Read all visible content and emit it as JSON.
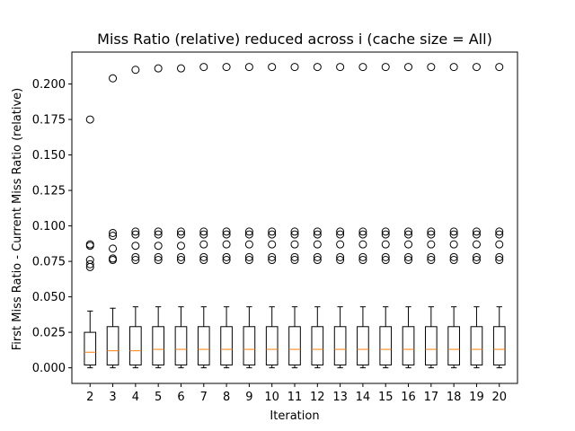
{
  "chart_data": {
    "type": "box",
    "title": "Miss Ratio (relative) reduced across i (cache size = All)",
    "xlabel": "Iteration",
    "ylabel": "First Miss Ratio - Current Miss Ratio (relative)",
    "ylim": [
      -0.011,
      0.2225
    ],
    "y_ticks": [
      0.0,
      0.025,
      0.05,
      0.075,
      0.1,
      0.125,
      0.15,
      0.175,
      0.2
    ],
    "y_tick_labels": [
      "0.000",
      "0.025",
      "0.050",
      "0.075",
      "0.100",
      "0.125",
      "0.150",
      "0.175",
      "0.200"
    ],
    "grid": false,
    "colors": {
      "median": "#ff7f0e",
      "box": "#000000",
      "flier": "#000000"
    },
    "boxes": [
      {
        "x": "2",
        "whislo": 0.0,
        "q1": 0.002,
        "med": 0.011,
        "q3": 0.025,
        "whishi": 0.04,
        "fliers": [
          0.071,
          0.073,
          0.076,
          0.086,
          0.087,
          0.175
        ]
      },
      {
        "x": "3",
        "whislo": 0.0,
        "q1": 0.002,
        "med": 0.012,
        "q3": 0.029,
        "whishi": 0.042,
        "fliers": [
          0.076,
          0.077,
          0.084,
          0.093,
          0.095,
          0.204
        ]
      },
      {
        "x": "4",
        "whislo": 0.0,
        "q1": 0.002,
        "med": 0.012,
        "q3": 0.029,
        "whishi": 0.043,
        "fliers": [
          0.076,
          0.078,
          0.086,
          0.094,
          0.096,
          0.21
        ]
      },
      {
        "x": "5",
        "whislo": 0.0,
        "q1": 0.002,
        "med": 0.013,
        "q3": 0.029,
        "whishi": 0.043,
        "fliers": [
          0.076,
          0.078,
          0.086,
          0.094,
          0.096,
          0.211
        ]
      },
      {
        "x": "6",
        "whislo": 0.0,
        "q1": 0.002,
        "med": 0.013,
        "q3": 0.029,
        "whishi": 0.043,
        "fliers": [
          0.076,
          0.078,
          0.086,
          0.094,
          0.096,
          0.211
        ]
      },
      {
        "x": "7",
        "whislo": 0.0,
        "q1": 0.002,
        "med": 0.013,
        "q3": 0.029,
        "whishi": 0.043,
        "fliers": [
          0.076,
          0.078,
          0.087,
          0.094,
          0.096,
          0.212
        ]
      },
      {
        "x": "8",
        "whislo": 0.0,
        "q1": 0.002,
        "med": 0.013,
        "q3": 0.029,
        "whishi": 0.043,
        "fliers": [
          0.076,
          0.078,
          0.087,
          0.094,
          0.096,
          0.212
        ]
      },
      {
        "x": "9",
        "whislo": 0.0,
        "q1": 0.002,
        "med": 0.013,
        "q3": 0.029,
        "whishi": 0.043,
        "fliers": [
          0.076,
          0.078,
          0.087,
          0.094,
          0.096,
          0.212
        ]
      },
      {
        "x": "10",
        "whislo": 0.0,
        "q1": 0.002,
        "med": 0.013,
        "q3": 0.029,
        "whishi": 0.043,
        "fliers": [
          0.076,
          0.078,
          0.087,
          0.094,
          0.096,
          0.212
        ]
      },
      {
        "x": "11",
        "whislo": 0.0,
        "q1": 0.002,
        "med": 0.013,
        "q3": 0.029,
        "whishi": 0.043,
        "fliers": [
          0.076,
          0.078,
          0.087,
          0.094,
          0.096,
          0.212
        ]
      },
      {
        "x": "12",
        "whislo": 0.0,
        "q1": 0.002,
        "med": 0.013,
        "q3": 0.029,
        "whishi": 0.043,
        "fliers": [
          0.076,
          0.078,
          0.087,
          0.094,
          0.096,
          0.212
        ]
      },
      {
        "x": "13",
        "whislo": 0.0,
        "q1": 0.002,
        "med": 0.013,
        "q3": 0.029,
        "whishi": 0.043,
        "fliers": [
          0.076,
          0.078,
          0.087,
          0.094,
          0.096,
          0.212
        ]
      },
      {
        "x": "14",
        "whislo": 0.0,
        "q1": 0.002,
        "med": 0.013,
        "q3": 0.029,
        "whishi": 0.043,
        "fliers": [
          0.076,
          0.078,
          0.087,
          0.094,
          0.096,
          0.212
        ]
      },
      {
        "x": "15",
        "whislo": 0.0,
        "q1": 0.002,
        "med": 0.013,
        "q3": 0.029,
        "whishi": 0.043,
        "fliers": [
          0.076,
          0.078,
          0.087,
          0.094,
          0.096,
          0.212
        ]
      },
      {
        "x": "16",
        "whislo": 0.0,
        "q1": 0.002,
        "med": 0.013,
        "q3": 0.029,
        "whishi": 0.043,
        "fliers": [
          0.076,
          0.078,
          0.087,
          0.094,
          0.096,
          0.212
        ]
      },
      {
        "x": "17",
        "whislo": 0.0,
        "q1": 0.002,
        "med": 0.013,
        "q3": 0.029,
        "whishi": 0.043,
        "fliers": [
          0.076,
          0.078,
          0.087,
          0.094,
          0.096,
          0.212
        ]
      },
      {
        "x": "18",
        "whislo": 0.0,
        "q1": 0.002,
        "med": 0.013,
        "q3": 0.029,
        "whishi": 0.043,
        "fliers": [
          0.076,
          0.078,
          0.087,
          0.094,
          0.096,
          0.212
        ]
      },
      {
        "x": "19",
        "whislo": 0.0,
        "q1": 0.002,
        "med": 0.013,
        "q3": 0.029,
        "whishi": 0.043,
        "fliers": [
          0.076,
          0.078,
          0.087,
          0.094,
          0.096,
          0.212
        ]
      },
      {
        "x": "20",
        "whislo": 0.0,
        "q1": 0.002,
        "med": 0.013,
        "q3": 0.029,
        "whishi": 0.043,
        "fliers": [
          0.076,
          0.078,
          0.087,
          0.094,
          0.096,
          0.212
        ]
      }
    ]
  }
}
